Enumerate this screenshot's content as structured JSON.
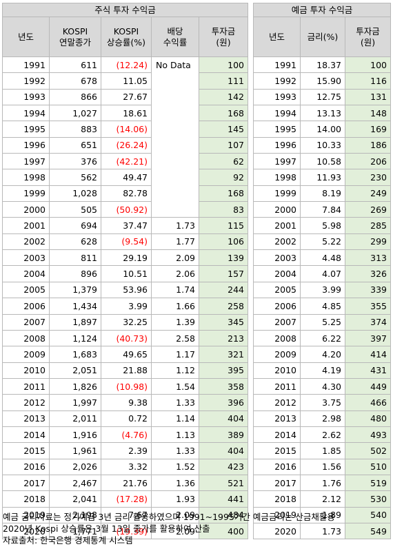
{
  "stock_table": {
    "title": "주식 투자 수익금",
    "headers": [
      "년도",
      "KOSPI\n연말종가",
      "KOSPI\n상승률(%)",
      "배당\n수익률",
      "투자금\n(원)"
    ],
    "no_data_label": "No Data",
    "rows": [
      [
        "1991",
        "611",
        "(12.24)",
        "",
        "100"
      ],
      [
        "1992",
        "678",
        "11.05",
        "",
        "111"
      ],
      [
        "1993",
        "866",
        "27.67",
        "",
        "142"
      ],
      [
        "1994",
        "1,027",
        "18.61",
        "",
        "168"
      ],
      [
        "1995",
        "883",
        "(14.06)",
        "",
        "145"
      ],
      [
        "1996",
        "651",
        "(26.24)",
        "",
        "107"
      ],
      [
        "1997",
        "376",
        "(42.21)",
        "",
        "62"
      ],
      [
        "1998",
        "562",
        "49.47",
        "",
        "92"
      ],
      [
        "1999",
        "1,028",
        "82.78",
        "",
        "168"
      ],
      [
        "2000",
        "505",
        "(50.92)",
        "",
        "83"
      ],
      [
        "2001",
        "694",
        "37.47",
        "1.73",
        "115"
      ],
      [
        "2002",
        "628",
        "(9.54)",
        "1.77",
        "106"
      ],
      [
        "2003",
        "811",
        "29.19",
        "2.09",
        "139"
      ],
      [
        "2004",
        "896",
        "10.51",
        "2.06",
        "157"
      ],
      [
        "2005",
        "1,379",
        "53.96",
        "1.74",
        "244"
      ],
      [
        "2006",
        "1,434",
        "3.99",
        "1.66",
        "258"
      ],
      [
        "2007",
        "1,897",
        "32.25",
        "1.39",
        "345"
      ],
      [
        "2008",
        "1,124",
        "(40.73)",
        "2.58",
        "213"
      ],
      [
        "2009",
        "1,683",
        "49.65",
        "1.17",
        "321"
      ],
      [
        "2010",
        "2,051",
        "21.88",
        "1.12",
        "395"
      ],
      [
        "2011",
        "1,826",
        "(10.98)",
        "1.54",
        "358"
      ],
      [
        "2012",
        "1,997",
        "9.38",
        "1.33",
        "396"
      ],
      [
        "2013",
        "2,011",
        "0.72",
        "1.14",
        "404"
      ],
      [
        "2014",
        "1,916",
        "(4.76)",
        "1.13",
        "389"
      ],
      [
        "2015",
        "1,961",
        "2.39",
        "1.33",
        "404"
      ],
      [
        "2016",
        "2,026",
        "3.32",
        "1.52",
        "423"
      ],
      [
        "2017",
        "2,467",
        "21.76",
        "1.36",
        "521"
      ],
      [
        "2018",
        "2,041",
        "(17.28)",
        "1.93",
        "441"
      ],
      [
        "2019",
        "2,198",
        "7.67",
        "2.09",
        "484"
      ],
      [
        "2020",
        "1,771",
        "(19.39)",
        "2.09",
        "400"
      ]
    ]
  },
  "deposit_table": {
    "title": "예금 투자 수익금",
    "headers": [
      "년도",
      "금리(%)",
      "투자금\n(원)"
    ],
    "rows": [
      [
        "1991",
        "18.37",
        "100"
      ],
      [
        "1992",
        "15.90",
        "116"
      ],
      [
        "1993",
        "12.75",
        "131"
      ],
      [
        "1994",
        "13.13",
        "148"
      ],
      [
        "1995",
        "14.00",
        "169"
      ],
      [
        "1996",
        "10.33",
        "186"
      ],
      [
        "1997",
        "10.58",
        "206"
      ],
      [
        "1998",
        "11.93",
        "230"
      ],
      [
        "1999",
        "8.19",
        "249"
      ],
      [
        "2000",
        "7.84",
        "269"
      ],
      [
        "2001",
        "5.98",
        "285"
      ],
      [
        "2002",
        "5.22",
        "299"
      ],
      [
        "2003",
        "4.48",
        "313"
      ],
      [
        "2004",
        "4.07",
        "326"
      ],
      [
        "2005",
        "3.99",
        "339"
      ],
      [
        "2006",
        "4.85",
        "355"
      ],
      [
        "2007",
        "5.25",
        "374"
      ],
      [
        "2008",
        "6.22",
        "397"
      ],
      [
        "2009",
        "4.20",
        "414"
      ],
      [
        "2010",
        "4.19",
        "431"
      ],
      [
        "2011",
        "4.30",
        "449"
      ],
      [
        "2012",
        "3.75",
        "466"
      ],
      [
        "2013",
        "2.98",
        "480"
      ],
      [
        "2014",
        "2.62",
        "493"
      ],
      [
        "2015",
        "1.85",
        "502"
      ],
      [
        "2016",
        "1.56",
        "510"
      ],
      [
        "2017",
        "1.76",
        "519"
      ],
      [
        "2018",
        "2.12",
        "530"
      ],
      [
        "2019",
        "1.89",
        "540"
      ],
      [
        "2020",
        "1.73",
        "549"
      ]
    ]
  },
  "notes": [
    "예금 금리자료는 정기예금 3년 금리 활용하였으며 1991~1995기간 예금금리는 산금채활용",
    "2020년 Kospi 상승률은 3월 13일 종가를 활용하여 산출",
    "자료출처: 한국은행 경제통계 시스템"
  ],
  "colors": {
    "header_bg": "#d9d9d9",
    "investment_bg": "#e2efda",
    "negative_text": "#ff0000",
    "border": "#b8b8b8"
  }
}
